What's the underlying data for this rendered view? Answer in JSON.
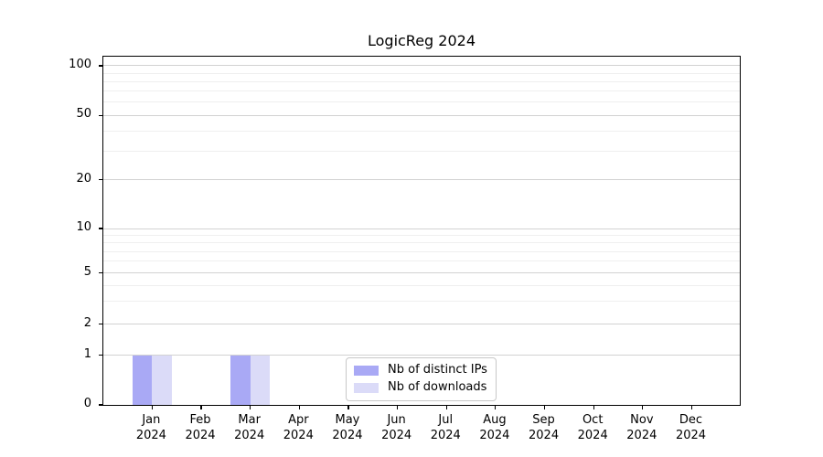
{
  "figure": {
    "background": "#ffffff",
    "text_color": "#000000"
  },
  "chart_data": {
    "type": "bar",
    "title": "LogicReg 2024",
    "categories": [
      "Jan 2024",
      "Feb 2024",
      "Mar 2024",
      "Apr 2024",
      "May 2024",
      "Jun 2024",
      "Jul 2024",
      "Aug 2024",
      "Sep 2024",
      "Oct 2024",
      "Nov 2024",
      "Dec 2024"
    ],
    "series": [
      {
        "name": "Nb of distinct IPs",
        "color": "#a9a9f5",
        "values": [
          1,
          0,
          1,
          0,
          0,
          0,
          0,
          0,
          0,
          0,
          0,
          0
        ]
      },
      {
        "name": "Nb of downloads",
        "color": "#dbdbf8",
        "values": [
          1,
          0,
          1,
          0,
          0,
          0,
          0,
          0,
          0,
          0,
          0,
          0
        ]
      }
    ],
    "xlabel": "",
    "ylabel": "",
    "y_axis": {
      "scale": "symlog",
      "major_ticks": [
        100,
        50,
        20,
        10,
        5,
        2,
        1,
        0
      ],
      "minor_ticks": [
        3,
        4,
        6,
        7,
        8,
        9,
        30,
        40,
        60,
        70,
        80,
        90
      ],
      "ylim": [
        0,
        107
      ]
    },
    "grid": {
      "enabled": true,
      "major_color": "#d2d2d2",
      "minor_color": "#efefef"
    },
    "legend": {
      "position": "lower center, inside plot",
      "border_color": "#c8c8c8",
      "background": "#ffffff"
    }
  }
}
